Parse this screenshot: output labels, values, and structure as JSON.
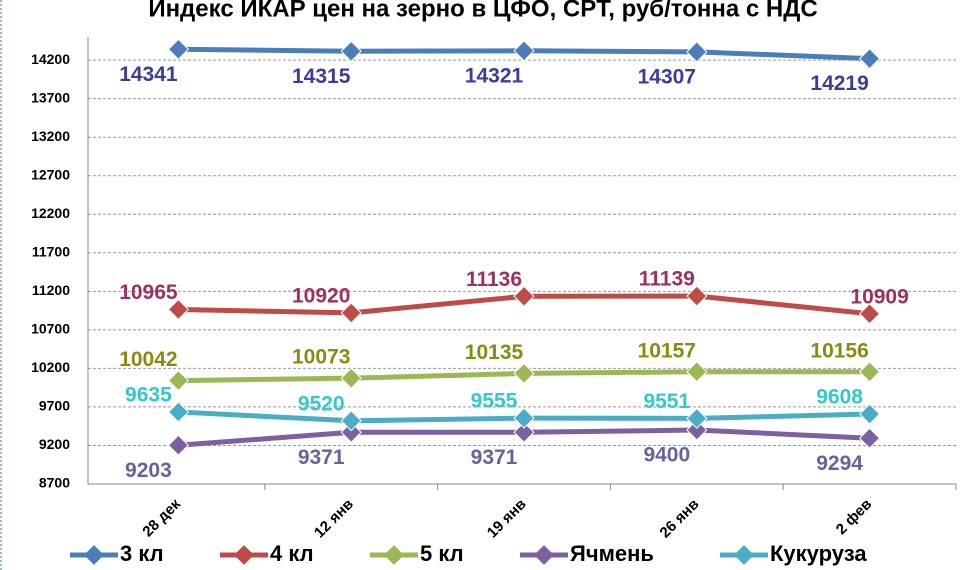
{
  "chart_data": {
    "type": "line",
    "title": "Индекс ИКАР цен на зерно в ЦФО, CPT, руб/тонна с НДС",
    "categories": [
      "28 дек",
      "12 янв",
      "19 янв",
      "26 янв",
      "2 фев"
    ],
    "series": [
      {
        "name": "3 кл",
        "color": "#4a7ebb",
        "label_color": "#3b3ba0",
        "values": [
          14341,
          14315,
          14321,
          14307,
          14219
        ]
      },
      {
        "name": "4 кл",
        "color": "#be4b48",
        "label_color": "#9e3060",
        "values": [
          10965,
          10920,
          11136,
          11139,
          10909
        ]
      },
      {
        "name": "5 кл",
        "color": "#98b954",
        "label_color": "#8a8a10",
        "values": [
          10042,
          10073,
          10135,
          10157,
          10156
        ]
      },
      {
        "name": "Ячмень",
        "color": "#7d60a0",
        "label_color": "#6a60a0",
        "values": [
          9203,
          9371,
          9371,
          9400,
          9294
        ]
      },
      {
        "name": "Кукуруза",
        "color": "#4bacc6",
        "label_color": "#33c8cc",
        "values": [
          9635,
          9520,
          9555,
          9551,
          9608
        ]
      }
    ],
    "ylim": [
      8700,
      14500
    ],
    "yticks": [
      8700,
      9200,
      9700,
      10200,
      10700,
      11200,
      11700,
      12200,
      12700,
      13200,
      13700,
      14200
    ],
    "grid": true
  }
}
